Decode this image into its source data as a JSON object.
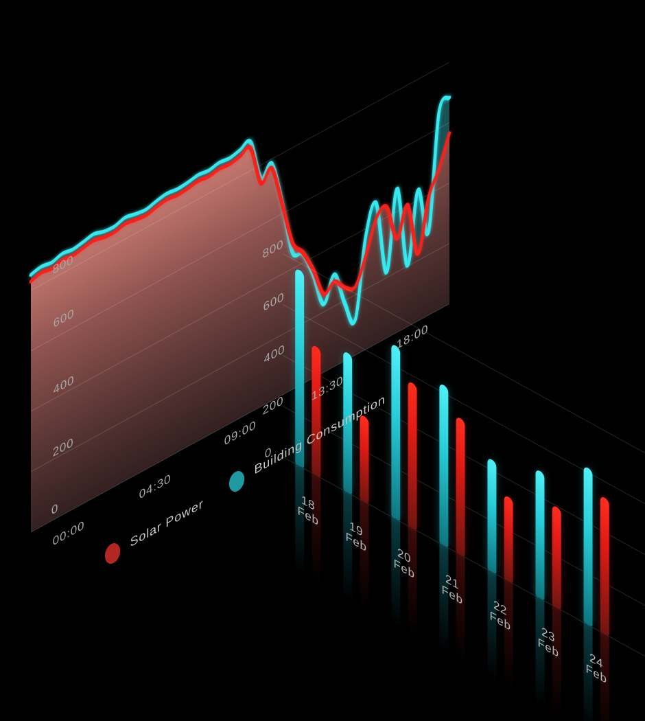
{
  "theme": {
    "background": "#000000",
    "grid_line_color": "rgba(255,255,255,0.17)",
    "axis_text_color": "#a6a6a6",
    "date_text_color": "#b3b3b3",
    "legend_text_color": "#c6c6c6",
    "accent_cyan": "#38e8ef",
    "accent_red": "#f2201a"
  },
  "legend": {
    "items": [
      {
        "label": "Solar Power",
        "dot_color": "#b22724"
      },
      {
        "label": "Building Consumption",
        "dot_color": "#1e9aa0"
      }
    ]
  },
  "area_chart": {
    "y_tick_labels": [
      "800",
      "600",
      "400",
      "200",
      "0"
    ],
    "x_tick_labels": [
      "00:00",
      "04:30",
      "09:00",
      "13:30",
      "18:00"
    ]
  },
  "bar_chart": {
    "y_tick_labels": [
      "800",
      "600",
      "400",
      "200",
      "0"
    ],
    "categories": [
      {
        "day": "18",
        "month": "Feb"
      },
      {
        "day": "19",
        "month": "Feb"
      },
      {
        "day": "20",
        "month": "Feb"
      },
      {
        "day": "21",
        "month": "Feb"
      },
      {
        "day": "22",
        "month": "Feb"
      },
      {
        "day": "23",
        "month": "Feb"
      },
      {
        "day": "24",
        "month": "Feb"
      }
    ]
  },
  "chart_data": [
    {
      "type": "area",
      "title": "",
      "x_ticks": [
        "00:00",
        "04:30",
        "09:00",
        "13:30",
        "18:00"
      ],
      "x_start_hour": 0,
      "x_end_hour": 20,
      "sample_interval_hours": 0.5,
      "y_ticks": [
        0,
        200,
        400,
        600,
        800
      ],
      "ylim": [
        0,
        1045
      ],
      "grid": true,
      "legend_position": "bottom-floor",
      "series": [
        {
          "name": "Building Consumption",
          "color": "#38e8ef",
          "fill": "#1a5458",
          "values": [
            852,
            860,
            855,
            865,
            860,
            866,
            873,
            863,
            861,
            871,
            864,
            860,
            869,
            875,
            871,
            874,
            880,
            876,
            883,
            879,
            887,
            894,
            755,
            786,
            641,
            455,
            429,
            341,
            225,
            305,
            191,
            116,
            372,
            465,
            217,
            476,
            202,
            434,
            274,
            651,
            682
          ]
        },
        {
          "name": "Solar Power",
          "color": "#f2201a",
          "fill": "maroon-gradient",
          "values": [
            830,
            840,
            835,
            844,
            840,
            846,
            852,
            844,
            842,
            850,
            845,
            841,
            849,
            855,
            851,
            854,
            860,
            856,
            862,
            859,
            866,
            874,
            739,
            770,
            636,
            486,
            434,
            357,
            259,
            281,
            243,
            227,
            308,
            414,
            434,
            310,
            403,
            222,
            388,
            465,
            564
          ]
        }
      ]
    },
    {
      "type": "bar",
      "title": "",
      "categories": [
        "18 Feb",
        "19 Feb",
        "20 Feb",
        "21 Feb",
        "22 Feb",
        "23 Feb",
        "24 Feb"
      ],
      "y_ticks": [
        0,
        200,
        400,
        600,
        800
      ],
      "ylim": [
        0,
        840
      ],
      "grid": true,
      "series": [
        {
          "name": "Building Consumption",
          "color": "#2fd9e4",
          "values": [
            770,
            550,
            680,
            630,
            440,
            500,
            615
          ]
        },
        {
          "name": "Solar Power",
          "color": "#e41b14",
          "values": [
            505,
            335,
            570,
            535,
            330,
            395,
            535
          ]
        }
      ]
    }
  ]
}
